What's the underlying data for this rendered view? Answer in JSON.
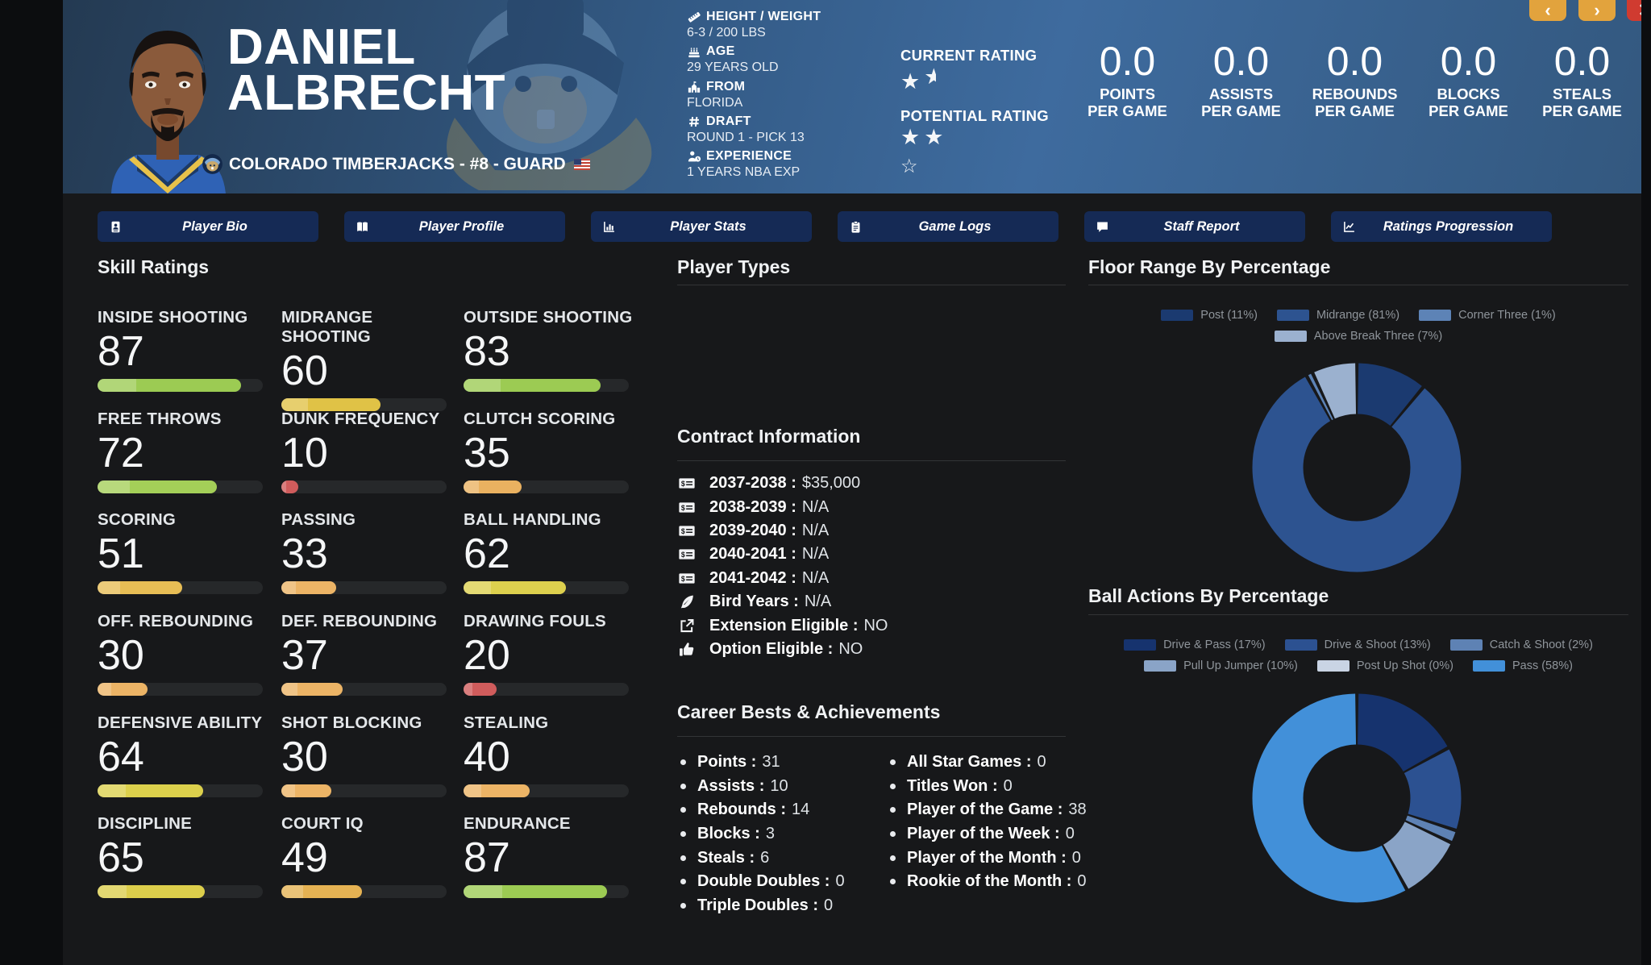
{
  "window": {
    "prev_label": "‹",
    "next_label": "›",
    "close_label": "✕"
  },
  "header": {
    "first_name": "DANIEL",
    "last_name": "ALBRECHT",
    "team_line": "COLORADO TIMBERJACKS - #8 - GUARD",
    "bio": [
      {
        "icon": "ruler-icon",
        "label": "HEIGHT / WEIGHT",
        "value": "6-3 / 200 LBS"
      },
      {
        "icon": "birthday-cake-icon",
        "label": "AGE",
        "value": "29 YEARS OLD"
      },
      {
        "icon": "school-icon",
        "label": "FROM",
        "value": "FLORIDA"
      },
      {
        "icon": "hash-icon",
        "label": "DRAFT",
        "value": "ROUND 1 - PICK 13"
      },
      {
        "icon": "person-clock-icon",
        "label": "EXPERIENCE",
        "value": "1 YEARS NBA EXP"
      }
    ],
    "ratings": {
      "current_label": "CURRENT RATING",
      "current_full": 1,
      "current_half": true,
      "potential_label": "POTENTIAL RATING",
      "potential_full": 2,
      "potential_empty": 1
    },
    "stats": [
      {
        "value": "0.0",
        "label1": "POINTS",
        "label2": "PER GAME"
      },
      {
        "value": "0.0",
        "label1": "ASSISTS",
        "label2": "PER GAME"
      },
      {
        "value": "0.0",
        "label1": "REBOUNDS",
        "label2": "PER GAME"
      },
      {
        "value": "0.0",
        "label1": "BLOCKS",
        "label2": "PER GAME"
      },
      {
        "value": "0.0",
        "label1": "STEALS",
        "label2": "PER GAME"
      }
    ]
  },
  "tabs": [
    {
      "name": "tab-player-bio",
      "icon": "id-card-icon",
      "label": "Player Bio"
    },
    {
      "name": "tab-player-profile",
      "icon": "book-icon",
      "label": "Player Profile"
    },
    {
      "name": "tab-player-stats",
      "icon": "bar-chart-icon",
      "label": "Player Stats"
    },
    {
      "name": "tab-game-logs",
      "icon": "clipboard-icon",
      "label": "Game Logs"
    },
    {
      "name": "tab-staff-report",
      "icon": "comment-icon",
      "label": "Staff Report"
    },
    {
      "name": "tab-ratings-progression",
      "icon": "line-chart-icon",
      "label": "Ratings Progression"
    }
  ],
  "skills": {
    "title": "Skill Ratings",
    "items": [
      {
        "label": "INSIDE SHOOTING",
        "value": 87,
        "color": "#9ccb53"
      },
      {
        "label": "MIDRANGE SHOOTING",
        "value": 60,
        "color": "#e0c246"
      },
      {
        "label": "OUTSIDE SHOOTING",
        "value": 83,
        "color": "#9ccb53"
      },
      {
        "label": "FREE THROWS",
        "value": 72,
        "color": "#a4cf58"
      },
      {
        "label": "DUNK FREQUENCY",
        "value": 10,
        "color": "#d05c5c"
      },
      {
        "label": "CLUTCH SCORING",
        "value": 35,
        "color": "#eab160"
      },
      {
        "label": "SCORING",
        "value": 51,
        "color": "#e7bd55"
      },
      {
        "label": "PASSING",
        "value": 33,
        "color": "#ecb466"
      },
      {
        "label": "BALL HANDLING",
        "value": 62,
        "color": "#ddd04e"
      },
      {
        "label": "OFF. REBOUNDING",
        "value": 30,
        "color": "#ecb466"
      },
      {
        "label": "DEF. REBOUNDING",
        "value": 37,
        "color": "#ecb466"
      },
      {
        "label": "DRAWING FOULS",
        "value": 20,
        "color": "#d05c5c"
      },
      {
        "label": "DEFENSIVE ABILITY",
        "value": 64,
        "color": "#dcd04c"
      },
      {
        "label": "SHOT BLOCKING",
        "value": 30,
        "color": "#ecb466"
      },
      {
        "label": "STEALING",
        "value": 40,
        "color": "#ecb466"
      },
      {
        "label": "DISCIPLINE",
        "value": 65,
        "color": "#dcce4b"
      },
      {
        "label": "COURT IQ",
        "value": 49,
        "color": "#e5b253"
      },
      {
        "label": "ENDURANCE",
        "value": 87,
        "color": "#9ccb53"
      }
    ]
  },
  "player_types": {
    "title": "Player Types",
    "icons": [
      {
        "icon": "fill-bucket-icon",
        "active": false
      },
      {
        "icon": "crosshair-icon",
        "active": false
      },
      {
        "icon": "bolt-icon",
        "active": true
      },
      {
        "icon": "paint-roller-icon",
        "active": false
      },
      {
        "icon": "mountain-icon",
        "active": false
      },
      {
        "icon": "magic-wand-icon",
        "active": false
      },
      {
        "icon": "shield-icon",
        "active": false
      },
      {
        "icon": "broom-icon",
        "active": false
      }
    ]
  },
  "contract": {
    "title": "Contract Information",
    "rows": [
      {
        "icon": "money-check-icon",
        "label": "2037-2038 :",
        "value": "$35,000"
      },
      {
        "icon": "money-check-icon",
        "label": "2038-2039 :",
        "value": "N/A"
      },
      {
        "icon": "money-check-icon",
        "label": "2039-2040 :",
        "value": "N/A"
      },
      {
        "icon": "money-check-icon",
        "label": "2040-2041 :",
        "value": "N/A"
      },
      {
        "icon": "money-check-icon",
        "label": "2041-2042 :",
        "value": "N/A"
      },
      {
        "icon": "feather-icon",
        "label": "Bird Years :",
        "value": "N/A"
      },
      {
        "icon": "external-link-icon",
        "label": "Extension Eligible :",
        "value": "NO"
      },
      {
        "icon": "thumbs-up-icon",
        "label": "Option Eligible :",
        "value": "NO"
      }
    ]
  },
  "career": {
    "title": "Career Bests & Achievements",
    "left": [
      {
        "label": "Points :",
        "value": "31"
      },
      {
        "label": "Assists :",
        "value": "10"
      },
      {
        "label": "Rebounds :",
        "value": "14"
      },
      {
        "label": "Blocks :",
        "value": "3"
      },
      {
        "label": "Steals :",
        "value": "6"
      },
      {
        "label": "Double Doubles :",
        "value": "0"
      },
      {
        "label": "Triple Doubles :",
        "value": "0"
      }
    ],
    "right": [
      {
        "label": "All Star Games :",
        "value": "0"
      },
      {
        "label": "Titles Won :",
        "value": "0"
      },
      {
        "label": "Player of the Game :",
        "value": "38"
      },
      {
        "label": "Player of the Week :",
        "value": "0"
      },
      {
        "label": "Player of the Month :",
        "value": "0"
      },
      {
        "label": "Rookie of the Month :",
        "value": "0"
      }
    ]
  },
  "chart_data": [
    {
      "type": "pie",
      "donut": true,
      "title": "Floor Range By Percentage",
      "labels": [
        "Post",
        "Midrange",
        "Corner Three",
        "Above Break Three"
      ],
      "values": [
        11,
        81,
        1,
        7
      ],
      "colors": [
        "#1b3a70",
        "#2d5390",
        "#5d83b6",
        "#9bb1cf"
      ],
      "legend": [
        "Post (11%)",
        "Midrange (81%)",
        "Corner Three (1%)",
        "Above Break Three (7%)"
      ],
      "legend_position": "top"
    },
    {
      "type": "pie",
      "donut": true,
      "title": "Ball Actions By Percentage",
      "labels": [
        "Drive & Pass",
        "Drive & Shoot",
        "Catch & Shoot",
        "Pull Up Jumper",
        "Post Up Shot",
        "Pass"
      ],
      "values": [
        17,
        13,
        2,
        10,
        0,
        58
      ],
      "colors": [
        "#16336e",
        "#2c5191",
        "#5e82b4",
        "#8aa4c7",
        "#c9d4e4",
        "#4290d9"
      ],
      "legend": [
        "Drive & Pass (17%)",
        "Drive & Shoot (13%)",
        "Catch & Shoot (2%)",
        "Pull Up Jumper (10%)",
        "Post Up Shot (0%)",
        "Pass (58%)"
      ],
      "legend_position": "top"
    }
  ]
}
